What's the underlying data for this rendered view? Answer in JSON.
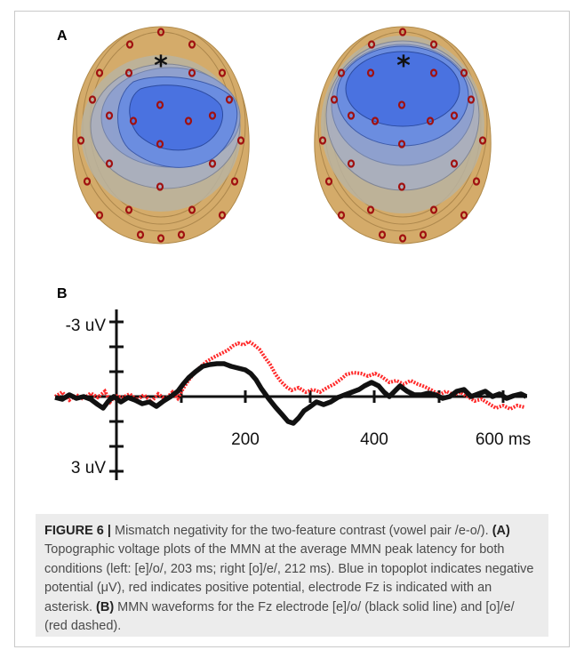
{
  "panel_labels": {
    "a": "A",
    "b": "B"
  },
  "panel_a": {
    "marker": "*",
    "colors": {
      "skin": "#d4ab6a",
      "negative": "#4a6fd8",
      "electrode": "#a01010"
    }
  },
  "panel_b": {
    "y_top_label": "-3 uV",
    "y_bottom_label": "3 uV",
    "x_tick_labels": [
      "200",
      "400",
      "600 ms"
    ],
    "series_colors": {
      "black": "#111111",
      "red": "#ff2a2a"
    }
  },
  "caption": {
    "lead": "FIGURE 6 |",
    "intro": " Mismatch negativity for the two-feature contrast (vowel pair /e-o/). ",
    "a_tag": "(A)",
    "a_text": " Topographic voltage plots of the MMN at the average MMN peak latency for both conditions (left: [e]/o/, 203 ms; right [o]/e/, 212 ms). Blue in topoplot indicates negative potential (μV), red indicates positive potential, electrode Fz is indicated with an asterisk. ",
    "b_tag": "(B)",
    "b_text": " MMN waveforms for the Fz electrode [e]/o/ (black solid line) and [o]/e/ (red dashed)."
  }
}
